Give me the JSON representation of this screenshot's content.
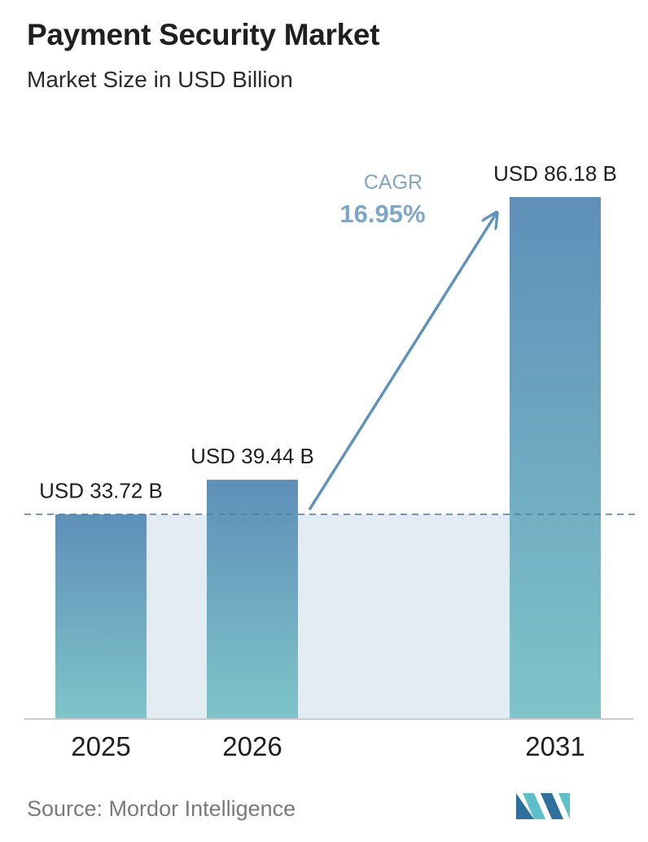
{
  "header": {
    "title": "Payment Security Market",
    "subtitle": "Market Size in USD Billion"
  },
  "chart_data": {
    "type": "bar",
    "categories": [
      "2025",
      "2026",
      "2031"
    ],
    "values": [
      33.72,
      39.44,
      86.18
    ],
    "value_labels": [
      "USD 33.72 B",
      "USD 39.44 B",
      "USD 86.18 B"
    ],
    "title": "Payment Security Market",
    "subtitle": "Market Size in USD Billion",
    "ylim": [
      0,
      86.18
    ],
    "grid": false,
    "legend": "none",
    "annotation": {
      "label": "CAGR",
      "value": "16.95%"
    },
    "colors": {
      "bar_top": "#5e8fb8",
      "bar_bottom": "#7ec4c9",
      "band": "#e3ebf3",
      "arrow": "#5f93be",
      "cagr_label": "#7ea7c7",
      "dashed_line": "#4f7fa3",
      "axis": "#cccccc"
    }
  },
  "footer": {
    "source": "Source:  Mordor Intelligence",
    "logo_icon": "mordor-intelligence-logo-icon"
  }
}
